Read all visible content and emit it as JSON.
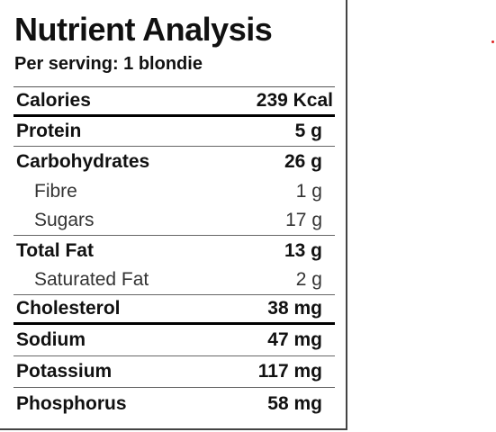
{
  "header": {
    "title": "Nutrient Analysis",
    "subtitle": "Per serving: 1 blondie"
  },
  "table": {
    "rows": [
      [
        "Calories",
        "239 Kcal"
      ],
      [
        "Protein",
        "5 g"
      ],
      [
        "Carbohydrates",
        "26 g"
      ],
      [
        "Fibre",
        "1 g"
      ],
      [
        "Sugars",
        "17 g"
      ],
      [
        "Total Fat",
        "13 g"
      ],
      [
        "Saturated Fat",
        "2 g"
      ],
      [
        "Cholesterol",
        "38 mg"
      ],
      [
        "Sodium",
        "47 mg"
      ],
      [
        "Potassium",
        "117 mg"
      ],
      [
        "Phosphorus",
        "58 mg"
      ]
    ]
  }
}
